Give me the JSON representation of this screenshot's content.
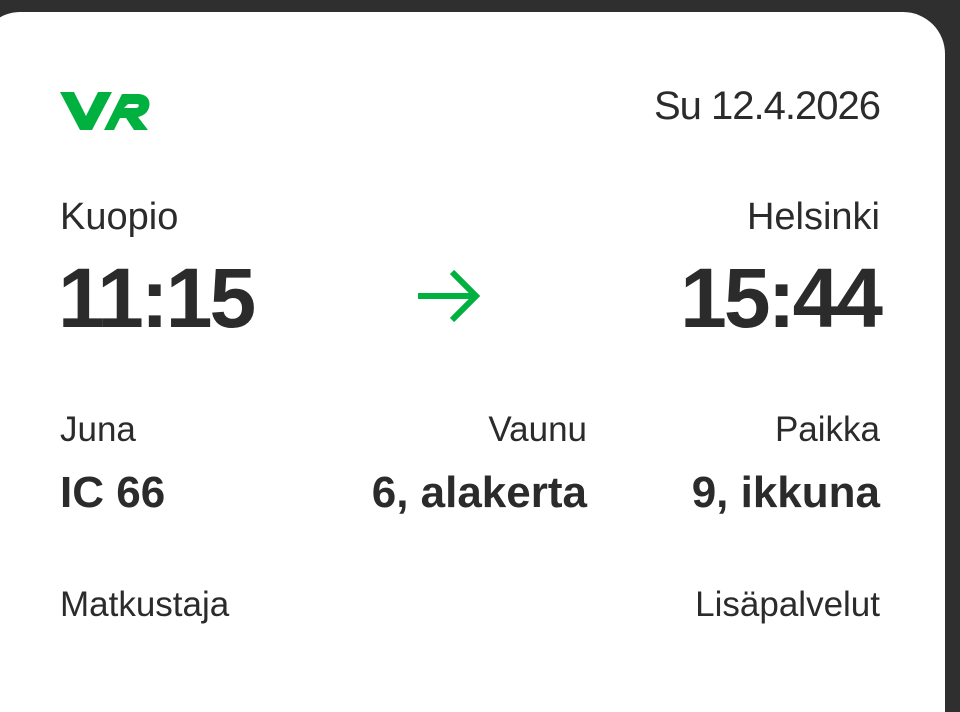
{
  "brand": {
    "logo_text": "VR",
    "color": "#00b140"
  },
  "ticket": {
    "date": "Su 12.4.2026",
    "departure": {
      "station": "Kuopio",
      "time": "11:15"
    },
    "arrival": {
      "station": "Helsinki",
      "time": "15:44"
    },
    "arrow_icon": "arrow-right-icon",
    "train": {
      "label": "Juna",
      "value": "IC 66"
    },
    "car": {
      "label": "Vaunu",
      "value": "6, alakerta"
    },
    "seat": {
      "label": "Paikka",
      "value": "9, ikkuna"
    },
    "passenger": {
      "label": "Matkustaja"
    },
    "extras": {
      "label": "Lisäpalvelut"
    }
  }
}
